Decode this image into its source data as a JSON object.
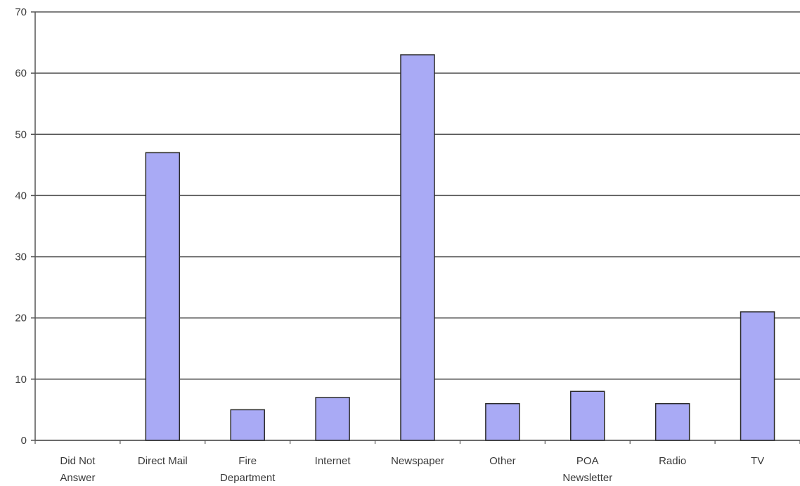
{
  "chart_data": {
    "type": "bar",
    "categories": [
      [
        "Did Not",
        "Answer"
      ],
      [
        "Direct Mail"
      ],
      [
        "Fire",
        "Department"
      ],
      [
        "Internet"
      ],
      [
        "Newspaper"
      ],
      [
        "Other"
      ],
      [
        "POA",
        "Newsletter"
      ],
      [
        "Radio"
      ],
      [
        "TV"
      ]
    ],
    "values": [
      0,
      47,
      5,
      7,
      63,
      6,
      8,
      6,
      21
    ],
    "title": "",
    "xlabel": "",
    "ylabel": "",
    "ylim": [
      0,
      70
    ],
    "yticks": [
      "0",
      "10",
      "20",
      "30",
      "40",
      "50",
      "60",
      "70"
    ],
    "grid": true,
    "legend": "none",
    "colors": {
      "bar_fill": "#a9aaf5",
      "bar_stroke": "#2a2a2a",
      "grid": "#555555",
      "axis": "#555555"
    }
  }
}
